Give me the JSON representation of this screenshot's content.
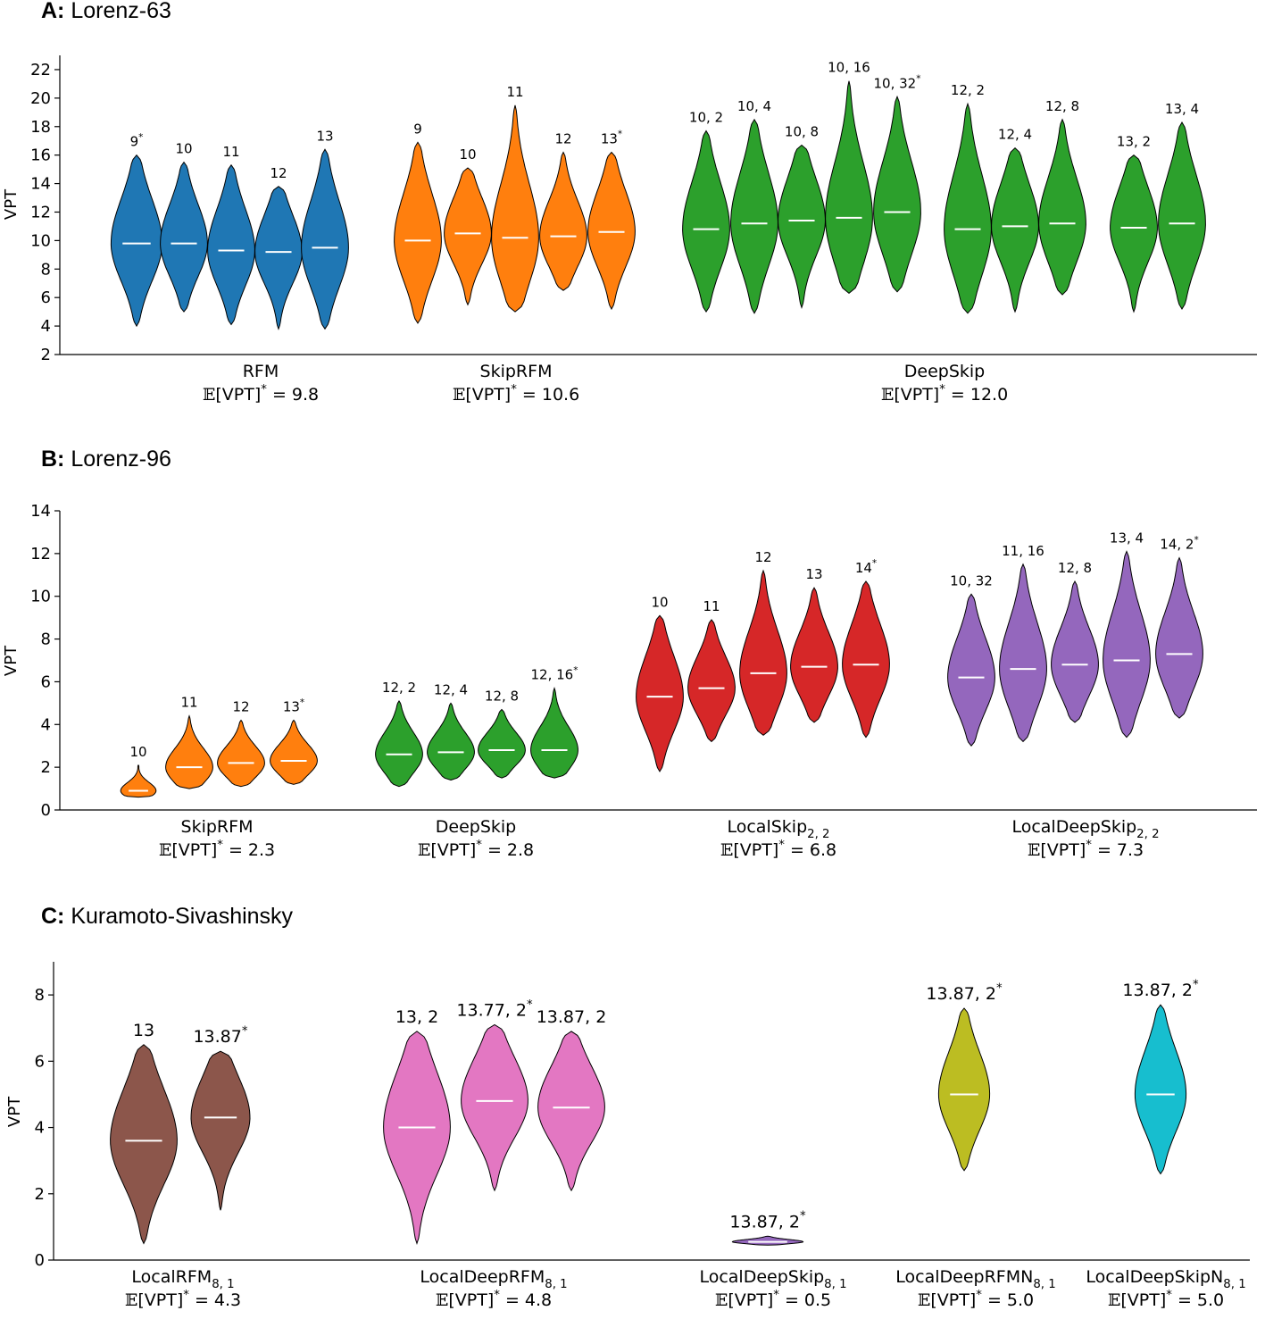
{
  "panels": [
    {
      "letter": "A:",
      "name": "Lorenz-63"
    },
    {
      "letter": "B:",
      "name": "Lorenz-96"
    },
    {
      "letter": "C:",
      "name": "Kuramoto-Sivashinsky"
    }
  ],
  "chart_data": [
    {
      "type": "violin",
      "title": "A: Lorenz-63",
      "ylabel": "VPT",
      "ylim": [
        2,
        23
      ],
      "yticks": [
        2,
        4,
        6,
        8,
        10,
        12,
        14,
        16,
        18,
        20,
        22
      ],
      "groups": [
        {
          "name": "RFM",
          "evpt": "9.8",
          "color": "#1f77b4",
          "violins": [
            {
              "label": "9",
              "star": true,
              "min": 4.0,
              "max": 16.0,
              "mean": 9.8,
              "width": 0.65
            },
            {
              "label": "10",
              "star": false,
              "min": 5.0,
              "max": 15.5,
              "mean": 9.8,
              "width": 0.6
            },
            {
              "label": "11",
              "star": false,
              "min": 4.1,
              "max": 15.3,
              "mean": 9.3,
              "width": 0.6
            },
            {
              "label": "12",
              "star": false,
              "min": 3.8,
              "max": 13.8,
              "mean": 9.2,
              "width": 0.6
            },
            {
              "label": "13",
              "star": false,
              "min": 3.8,
              "max": 16.4,
              "mean": 9.5,
              "width": 0.6
            }
          ]
        },
        {
          "name": "SkipRFM",
          "evpt": "10.6",
          "color": "#ff7f0e",
          "violins": [
            {
              "label": "9",
              "star": false,
              "min": 4.2,
              "max": 16.9,
              "mean": 10.0,
              "width": 0.6
            },
            {
              "label": "10",
              "star": false,
              "min": 5.5,
              "max": 15.1,
              "mean": 10.5,
              "width": 0.6
            },
            {
              "label": "11",
              "star": false,
              "min": 5.0,
              "max": 19.5,
              "mean": 10.2,
              "width": 0.6
            },
            {
              "label": "12",
              "star": false,
              "min": 6.5,
              "max": 16.2,
              "mean": 10.3,
              "width": 0.6
            },
            {
              "label": "13",
              "star": true,
              "min": 5.2,
              "max": 16.2,
              "mean": 10.6,
              "width": 0.6
            }
          ]
        },
        {
          "name": "DeepSkip",
          "evpt": "12.0",
          "color": "#2ca02c",
          "violins": [
            {
              "label": "10, 2",
              "star": false,
              "min": 5.0,
              "max": 17.7,
              "mean": 10.8,
              "width": 0.6
            },
            {
              "label": "10, 4",
              "star": false,
              "min": 4.9,
              "max": 18.5,
              "mean": 11.2,
              "width": 0.6
            },
            {
              "label": "10, 8",
              "star": false,
              "min": 5.3,
              "max": 16.7,
              "mean": 11.4,
              "width": 0.6
            },
            {
              "label": "10, 16",
              "star": false,
              "min": 6.3,
              "max": 21.2,
              "mean": 11.6,
              "width": 0.6
            },
            {
              "label": "10, 32",
              "star": true,
              "min": 6.4,
              "max": 20.1,
              "mean": 12.0,
              "width": 0.6
            },
            {
              "label": "12, 2",
              "star": false,
              "min": 4.9,
              "max": 19.6,
              "mean": 10.8,
              "width": 0.6
            },
            {
              "label": "12, 4",
              "star": false,
              "min": 5.0,
              "max": 16.5,
              "mean": 11.0,
              "width": 0.6
            },
            {
              "label": "12, 8",
              "star": false,
              "min": 6.2,
              "max": 18.5,
              "mean": 11.2,
              "width": 0.6
            },
            {
              "label": "13, 2",
              "star": false,
              "min": 5.0,
              "max": 16.0,
              "mean": 10.9,
              "width": 0.6
            },
            {
              "label": "13, 4",
              "star": false,
              "min": 5.2,
              "max": 18.3,
              "mean": 11.2,
              "width": 0.6
            }
          ]
        }
      ]
    },
    {
      "type": "violin",
      "title": "B: Lorenz-96",
      "ylabel": "VPT",
      "ylim": [
        0,
        14
      ],
      "yticks": [
        0,
        2,
        4,
        6,
        8,
        10,
        12,
        14
      ],
      "groups": [
        {
          "name": "SkipRFM",
          "sub": "",
          "evpt": "2.3",
          "color": "#ff7f0e",
          "violins": [
            {
              "label": "10",
              "star": false,
              "min": 0.6,
              "max": 2.1,
              "mean": 0.9,
              "width": 0.45
            },
            {
              "label": "11",
              "star": false,
              "min": 1.0,
              "max": 4.4,
              "mean": 2.0,
              "width": 0.6
            },
            {
              "label": "12",
              "star": false,
              "min": 1.1,
              "max": 4.2,
              "mean": 2.2,
              "width": 0.6
            },
            {
              "label": "13",
              "star": true,
              "min": 1.2,
              "max": 4.2,
              "mean": 2.3,
              "width": 0.6
            }
          ]
        },
        {
          "name": "DeepSkip",
          "sub": "",
          "evpt": "2.8",
          "color": "#2ca02c",
          "violins": [
            {
              "label": "12, 2",
              "star": false,
              "min": 1.1,
              "max": 5.1,
              "mean": 2.6,
              "width": 0.6
            },
            {
              "label": "12, 4",
              "star": false,
              "min": 1.4,
              "max": 5.0,
              "mean": 2.7,
              "width": 0.6
            },
            {
              "label": "12, 8",
              "star": false,
              "min": 1.5,
              "max": 4.7,
              "mean": 2.8,
              "width": 0.6
            },
            {
              "label": "12, 16",
              "star": true,
              "min": 1.5,
              "max": 5.7,
              "mean": 2.8,
              "width": 0.6
            }
          ]
        },
        {
          "name": "LocalSkip",
          "sub": "2, 2",
          "evpt": "6.8",
          "color": "#d62728",
          "violins": [
            {
              "label": "10",
              "star": false,
              "min": 1.8,
              "max": 9.1,
              "mean": 5.3,
              "width": 0.6
            },
            {
              "label": "11",
              "star": false,
              "min": 3.2,
              "max": 8.9,
              "mean": 5.7,
              "width": 0.6
            },
            {
              "label": "12",
              "star": false,
              "min": 3.5,
              "max": 11.2,
              "mean": 6.4,
              "width": 0.6
            },
            {
              "label": "13",
              "star": false,
              "min": 4.1,
              "max": 10.4,
              "mean": 6.7,
              "width": 0.6
            },
            {
              "label": "14",
              "star": true,
              "min": 3.4,
              "max": 10.7,
              "mean": 6.8,
              "width": 0.6
            }
          ]
        },
        {
          "name": "LocalDeepSkip",
          "sub": "2, 2",
          "evpt": "7.3",
          "color": "#9467bd",
          "violins": [
            {
              "label": "10, 32",
              "star": false,
              "min": 3.0,
              "max": 10.1,
              "mean": 6.2,
              "width": 0.6
            },
            {
              "label": "11, 16",
              "star": false,
              "min": 3.2,
              "max": 11.5,
              "mean": 6.6,
              "width": 0.6
            },
            {
              "label": "12, 8",
              "star": false,
              "min": 4.1,
              "max": 10.7,
              "mean": 6.8,
              "width": 0.6
            },
            {
              "label": "13, 4",
              "star": false,
              "min": 3.4,
              "max": 12.1,
              "mean": 7.0,
              "width": 0.6
            },
            {
              "label": "14, 2",
              "star": true,
              "min": 4.3,
              "max": 11.8,
              "mean": 7.3,
              "width": 0.6
            }
          ]
        }
      ]
    },
    {
      "type": "violin",
      "title": "C: Kuramoto-Sivashinsky",
      "ylabel": "VPT",
      "ylim": [
        0,
        9
      ],
      "yticks": [
        0,
        2,
        4,
        6,
        8
      ],
      "groups": [
        {
          "name": "LocalRFM",
          "sub": "8, 1",
          "evpt": "4.3",
          "color": "#8c564b",
          "violins": [
            {
              "label": "13",
              "star": false,
              "min": 0.5,
              "max": 6.5,
              "mean": 3.6,
              "width": 0.85
            },
            {
              "label": "13.87",
              "star": true,
              "min": 1.5,
              "max": 6.3,
              "mean": 4.3,
              "width": 0.75
            }
          ]
        },
        {
          "name": "LocalDeepRFM",
          "sub": "8, 1",
          "evpt": "4.8",
          "color": "#e377c2",
          "violins": [
            {
              "label": "13, 2",
              "star": false,
              "min": 0.5,
              "max": 6.9,
              "mean": 4.0,
              "width": 0.85
            },
            {
              "label": "13.77, 2",
              "star": true,
              "min": 2.1,
              "max": 7.1,
              "mean": 4.8,
              "width": 0.85
            },
            {
              "label": "13.87, 2",
              "star": false,
              "min": 2.1,
              "max": 6.9,
              "mean": 4.6,
              "width": 0.85
            }
          ]
        },
        {
          "name": "LocalDeepSkip",
          "sub": "8, 1",
          "evpt": "0.5",
          "color": "#9467bd",
          "violins": [
            {
              "label": "13.87, 2",
              "star": true,
              "min": 0.45,
              "max": 0.72,
              "mean": 0.55,
              "width": 0.9
            }
          ]
        },
        {
          "name": "LocalDeepRFMN",
          "sub": "8, 1",
          "evpt": "5.0",
          "color": "#bcbd22",
          "violins": [
            {
              "label": "13.87, 2",
              "star": true,
              "min": 2.7,
              "max": 7.6,
              "mean": 5.0,
              "width": 0.65
            }
          ]
        },
        {
          "name": "LocalDeepSkipN",
          "sub": "8, 1",
          "evpt": "5.0",
          "color": "#17becf",
          "violins": [
            {
              "label": "13.87, 2",
              "star": true,
              "min": 2.6,
              "max": 7.7,
              "mean": 5.0,
              "width": 0.65
            }
          ]
        }
      ]
    }
  ]
}
